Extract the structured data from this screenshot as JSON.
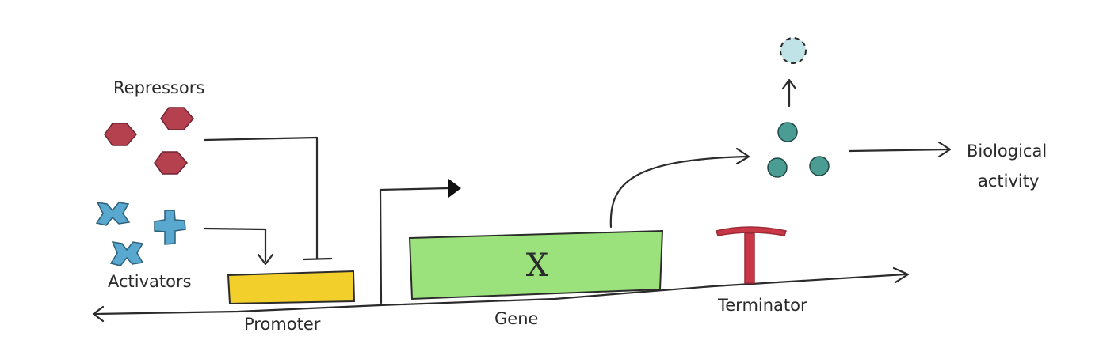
{
  "labels": {
    "repressors": "Repressors",
    "activators": "Activators",
    "promoter": "Promoter",
    "gene": "Gene",
    "gene_symbol": "X",
    "terminator": "Terminator",
    "biological_line1": "Biological",
    "biological_line2": "activity"
  },
  "colors": {
    "repressor": "#b5414f",
    "activator": "#58a8cf",
    "promoter": "#f2cf2b",
    "gene": "#9be27d",
    "terminator": "#c93847",
    "product": "#4b9c92",
    "product_dashed": "#bfe3e6",
    "ink": "#2b2b2b"
  }
}
